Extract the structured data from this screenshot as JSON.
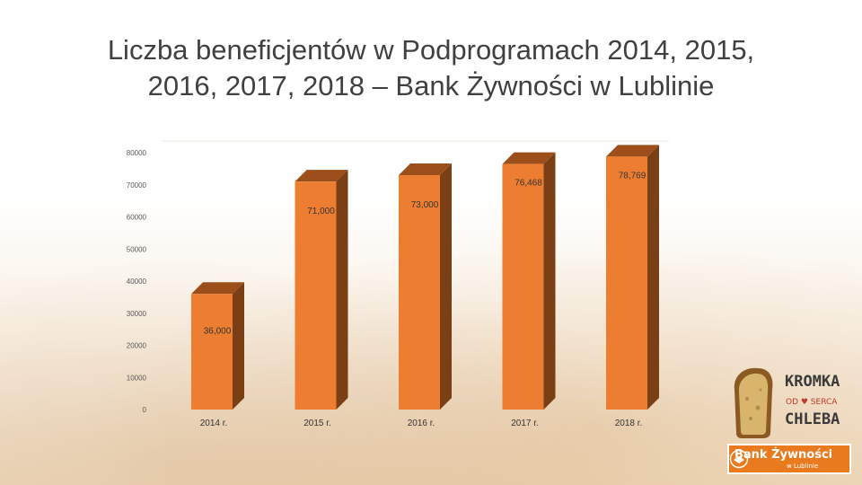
{
  "slide": {
    "title_line1": "Liczba beneficjentów w Podprogramach 2014, 2015,",
    "title_line2": "2016, 2017, 2018 – Bank Żywności w Lublinie"
  },
  "chart_data": {
    "type": "bar",
    "title": "Liczba beneficjentów w Podprogramach 2014, 2015, 2016, 2017, 2018 – Bank Żywności w Lublinie",
    "categories": [
      "2014 r.",
      "2015 r.",
      "2016 r.",
      "2017 r.",
      "2018 r."
    ],
    "values": [
      36000,
      71000,
      73000,
      76468,
      78769
    ],
    "data_labels": [
      "36,000",
      "71,000",
      "73,000",
      "76,468",
      "78,769"
    ],
    "y_ticks": [
      0,
      10000,
      20000,
      30000,
      40000,
      50000,
      60000,
      70000,
      80000
    ],
    "y_tick_labels": [
      "0",
      "10000",
      "20000",
      "30000",
      "40000",
      "50000",
      "60000",
      "70000",
      "80000"
    ],
    "ylim": [
      0,
      80000
    ],
    "xlabel": "",
    "ylabel": "",
    "grid": false,
    "bar_colors": {
      "front": "#ed7d31",
      "side": "#7a3f14",
      "top": "#9c4f1a"
    }
  },
  "logos": {
    "kromka_line1": "KROMKA",
    "kromka_line2": "OD ♥ SERCA",
    "kromka_line3": "CHLEBA",
    "bank_main": "Bank Żywności",
    "bank_sub": "w Lublinie"
  }
}
